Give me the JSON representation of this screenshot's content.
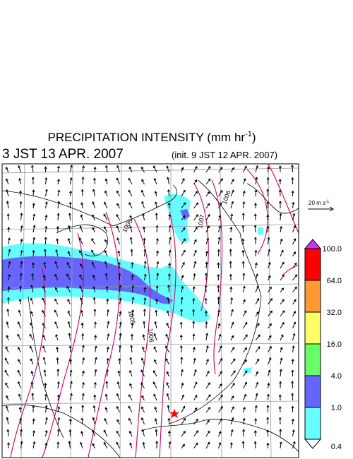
{
  "header": {
    "title": "PRECIPITATION INTENSITY (mm hr",
    "title_sup": "-1",
    "title_end": ")",
    "valid_time": "3 JST 13 APR. 2007",
    "init_time": "(init. 9 JST 12 APR. 2007)"
  },
  "vector_legend": {
    "label": "20 m s",
    "sup": "-1"
  },
  "colorbar": {
    "labels": [
      "100.0",
      "64.0",
      "32.0",
      "16.0",
      "4.0",
      "1.0",
      "0.4"
    ],
    "colors": [
      "#cc33ff",
      "#ff0000",
      "#ff9933",
      "#ffff66",
      "#66ff66",
      "#6666ff",
      "#66ffff",
      "#ffffff"
    ]
  },
  "contour_labels": [
    "1005",
    "1007",
    "1006",
    "1005",
    "1006"
  ]
}
